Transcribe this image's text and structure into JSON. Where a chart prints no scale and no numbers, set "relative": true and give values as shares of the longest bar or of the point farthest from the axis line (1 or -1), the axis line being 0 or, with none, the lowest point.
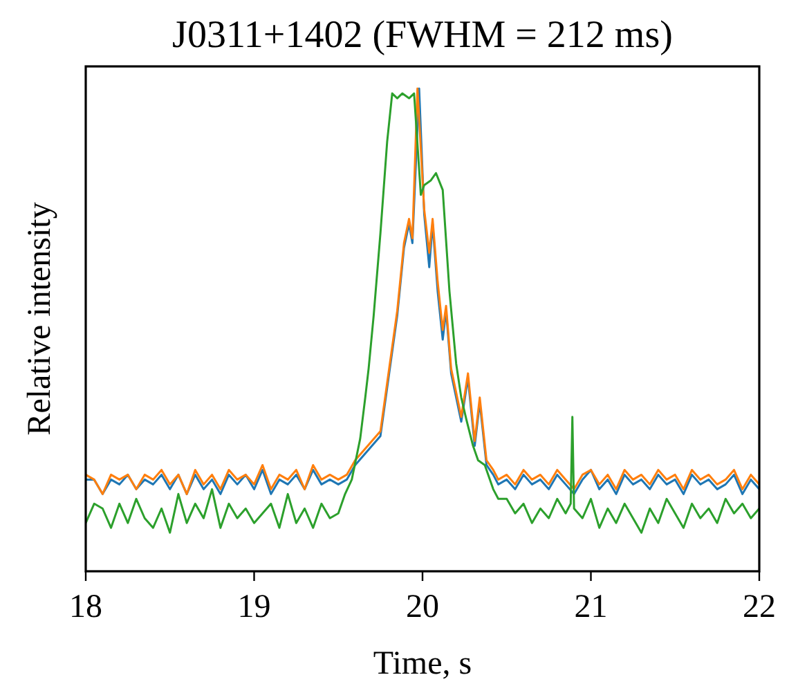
{
  "chart_data": {
    "type": "line",
    "title": "J0311+1402 (FWHM = 212 ms)",
    "xlabel": "Time, s",
    "ylabel": "Relative intensity",
    "relative": true,
    "xlim": [
      18,
      22
    ],
    "xticks": [
      18,
      19,
      20,
      21,
      22
    ],
    "grid": false,
    "line_style": "solid",
    "series": [
      {
        "color": "#1f77b4",
        "x": [
          18.0,
          18.05,
          18.1,
          18.15,
          18.2,
          18.25,
          18.3,
          18.35,
          18.4,
          18.45,
          18.5,
          18.55,
          18.6,
          18.65,
          18.7,
          18.75,
          18.8,
          18.85,
          18.9,
          18.95,
          19.0,
          19.05,
          19.1,
          19.15,
          19.2,
          19.25,
          19.3,
          19.35,
          19.4,
          19.45,
          19.5,
          19.55,
          19.6,
          19.65,
          19.7,
          19.75,
          19.79,
          19.85,
          19.89,
          19.92,
          19.94,
          19.98,
          20.01,
          20.04,
          20.06,
          20.09,
          20.12,
          20.14,
          20.17,
          20.23,
          20.27,
          20.31,
          20.34,
          20.38,
          20.42,
          20.45,
          20.5,
          20.55,
          20.6,
          20.65,
          20.7,
          20.75,
          20.8,
          20.85,
          20.9,
          20.95,
          21.0,
          21.05,
          21.1,
          21.15,
          21.2,
          21.25,
          21.3,
          21.35,
          21.4,
          21.45,
          21.5,
          21.55,
          21.6,
          21.65,
          21.7,
          21.75,
          21.8,
          21.85,
          21.9,
          21.95,
          22.0
        ],
        "values": [
          0.19,
          0.19,
          0.16,
          0.19,
          0.18,
          0.2,
          0.17,
          0.19,
          0.18,
          0.2,
          0.17,
          0.2,
          0.16,
          0.2,
          0.17,
          0.19,
          0.16,
          0.2,
          0.18,
          0.2,
          0.17,
          0.21,
          0.16,
          0.19,
          0.18,
          0.2,
          0.17,
          0.21,
          0.18,
          0.19,
          0.18,
          0.19,
          0.22,
          0.24,
          0.26,
          0.28,
          0.38,
          0.53,
          0.67,
          0.72,
          0.68,
          1.0,
          0.74,
          0.63,
          0.72,
          0.58,
          0.48,
          0.54,
          0.41,
          0.31,
          0.4,
          0.26,
          0.35,
          0.22,
          0.2,
          0.18,
          0.19,
          0.17,
          0.2,
          0.18,
          0.19,
          0.17,
          0.2,
          0.18,
          0.16,
          0.19,
          0.21,
          0.17,
          0.19,
          0.16,
          0.2,
          0.18,
          0.19,
          0.17,
          0.2,
          0.18,
          0.19,
          0.16,
          0.2,
          0.18,
          0.19,
          0.17,
          0.18,
          0.2,
          0.16,
          0.19,
          0.17
        ]
      },
      {
        "color": "#ff7f0e",
        "x": [
          18.0,
          18.05,
          18.1,
          18.15,
          18.2,
          18.25,
          18.3,
          18.35,
          18.4,
          18.45,
          18.5,
          18.55,
          18.6,
          18.65,
          18.7,
          18.75,
          18.8,
          18.85,
          18.9,
          18.95,
          19.0,
          19.05,
          19.1,
          19.15,
          19.2,
          19.25,
          19.3,
          19.35,
          19.4,
          19.45,
          19.5,
          19.55,
          19.6,
          19.65,
          19.7,
          19.75,
          19.79,
          19.85,
          19.89,
          19.92,
          19.94,
          19.97,
          20.01,
          20.04,
          20.06,
          20.09,
          20.12,
          20.14,
          20.17,
          20.23,
          20.27,
          20.31,
          20.34,
          20.38,
          20.42,
          20.45,
          20.5,
          20.55,
          20.6,
          20.65,
          20.7,
          20.75,
          20.8,
          20.85,
          20.9,
          20.95,
          21.0,
          21.05,
          21.1,
          21.15,
          21.2,
          21.25,
          21.3,
          21.35,
          21.4,
          21.45,
          21.5,
          21.55,
          21.6,
          21.65,
          21.7,
          21.75,
          21.8,
          21.85,
          21.9,
          21.95,
          22.0
        ],
        "values": [
          0.2,
          0.19,
          0.16,
          0.2,
          0.19,
          0.2,
          0.17,
          0.2,
          0.19,
          0.21,
          0.18,
          0.2,
          0.16,
          0.21,
          0.18,
          0.2,
          0.17,
          0.21,
          0.19,
          0.2,
          0.18,
          0.22,
          0.17,
          0.2,
          0.19,
          0.21,
          0.17,
          0.22,
          0.19,
          0.2,
          0.19,
          0.2,
          0.23,
          0.25,
          0.27,
          0.29,
          0.39,
          0.54,
          0.68,
          0.73,
          0.69,
          1.0,
          0.75,
          0.66,
          0.73,
          0.6,
          0.5,
          0.55,
          0.42,
          0.32,
          0.41,
          0.27,
          0.36,
          0.23,
          0.21,
          0.19,
          0.2,
          0.18,
          0.21,
          0.19,
          0.2,
          0.18,
          0.21,
          0.19,
          0.17,
          0.2,
          0.21,
          0.18,
          0.2,
          0.17,
          0.21,
          0.19,
          0.2,
          0.18,
          0.21,
          0.19,
          0.2,
          0.17,
          0.21,
          0.19,
          0.2,
          0.18,
          0.19,
          0.21,
          0.17,
          0.2,
          0.18
        ]
      },
      {
        "color": "#2ca02c",
        "x": [
          18.0,
          18.05,
          18.1,
          18.15,
          18.2,
          18.25,
          18.3,
          18.35,
          18.4,
          18.45,
          18.5,
          18.55,
          18.6,
          18.65,
          18.7,
          18.75,
          18.8,
          18.85,
          18.9,
          18.95,
          19.0,
          19.05,
          19.1,
          19.15,
          19.2,
          19.25,
          19.3,
          19.35,
          19.4,
          19.45,
          19.5,
          19.54,
          19.58,
          19.63,
          19.66,
          19.68,
          19.71,
          19.75,
          19.79,
          19.82,
          19.85,
          19.88,
          19.92,
          19.95,
          19.99,
          20.01,
          20.05,
          20.08,
          20.12,
          20.16,
          20.2,
          20.23,
          20.26,
          20.3,
          20.33,
          20.37,
          20.42,
          20.45,
          20.5,
          20.55,
          20.6,
          20.65,
          20.7,
          20.75,
          20.8,
          20.85,
          20.88,
          20.89,
          20.9,
          20.95,
          21.0,
          21.05,
          21.1,
          21.15,
          21.2,
          21.25,
          21.3,
          21.35,
          21.4,
          21.45,
          21.5,
          21.55,
          21.6,
          21.65,
          21.7,
          21.75,
          21.8,
          21.85,
          21.9,
          21.95,
          22.0
        ],
        "values": [
          0.1,
          0.14,
          0.13,
          0.09,
          0.14,
          0.1,
          0.15,
          0.11,
          0.09,
          0.13,
          0.08,
          0.16,
          0.1,
          0.14,
          0.11,
          0.17,
          0.09,
          0.14,
          0.11,
          0.13,
          0.1,
          0.12,
          0.14,
          0.09,
          0.16,
          0.1,
          0.13,
          0.09,
          0.14,
          0.11,
          0.12,
          0.16,
          0.19,
          0.275,
          0.36,
          0.42,
          0.53,
          0.7,
          0.89,
          0.99,
          0.98,
          0.99,
          0.98,
          0.99,
          0.78,
          0.8,
          0.81,
          0.825,
          0.79,
          0.58,
          0.43,
          0.36,
          0.315,
          0.26,
          0.23,
          0.22,
          0.17,
          0.15,
          0.15,
          0.12,
          0.14,
          0.1,
          0.13,
          0.11,
          0.15,
          0.12,
          0.14,
          0.32,
          0.13,
          0.11,
          0.15,
          0.09,
          0.13,
          0.1,
          0.14,
          0.11,
          0.08,
          0.13,
          0.1,
          0.15,
          0.12,
          0.09,
          0.14,
          0.11,
          0.13,
          0.1,
          0.15,
          0.12,
          0.14,
          0.11,
          0.13
        ]
      }
    ]
  }
}
